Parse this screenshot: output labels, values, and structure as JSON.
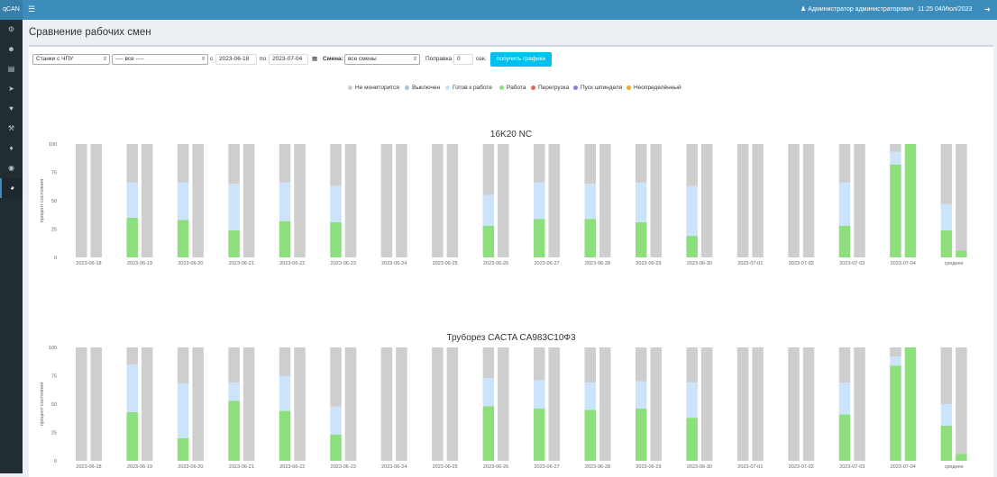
{
  "app": {
    "logo": "qCAN"
  },
  "header": {
    "user": "Администратор администраторович",
    "clock": "11:25 04/Июл/2023"
  },
  "sidebar": {
    "icons": [
      "gear-icon",
      "users-icon",
      "document-icon",
      "rocket-icon",
      "heart-icon",
      "wrench-icon",
      "bell-icon",
      "eye-icon",
      "chart-icon"
    ],
    "active_index": 8
  },
  "page": {
    "title": "Сравнение рабочих смен"
  },
  "filters": {
    "machine_group": "Станки с ЧПУ",
    "machine": "---- все ----",
    "from_label": "с",
    "date_from": "2023-06-18",
    "to_label": "по",
    "date_to": "2023-07-04",
    "shift_label": "Смена:",
    "shift": "все смены",
    "correction_label": "Поправка",
    "correction": "0",
    "unit": "сек.",
    "submit": "получить графики"
  },
  "legend": [
    {
      "label": "Не мониторится",
      "color": "#cccccc"
    },
    {
      "label": "Выключен",
      "color": "#9fc3e3"
    },
    {
      "label": "Готов к работе",
      "color": "#c9e2fb"
    },
    {
      "label": "Работа",
      "color": "#8ddf7e"
    },
    {
      "label": "Перегрузка",
      "color": "#e86464"
    },
    {
      "label": "Пуск шпинделя",
      "color": "#8a83d6"
    },
    {
      "label": "Неопределённый",
      "color": "#f0a828"
    }
  ],
  "colors": {
    "work": "#8ddf7e",
    "ready": "#cce4fb",
    "not_monitored": "#cecece"
  },
  "chart_data": [
    {
      "type": "bar",
      "title": "16K20 NC",
      "ylabel": "процент состояния",
      "ylim": [
        0,
        100
      ],
      "yticks": [
        0,
        25,
        50,
        75,
        100
      ],
      "categories": [
        "2023-06-18",
        "2023-06-19",
        "2023-06-20",
        "2023-06-21",
        "2023-06-22",
        "2023-06-23",
        "2023-06-24",
        "2023-06-25",
        "2023-06-26",
        "2023-06-27",
        "2023-06-28",
        "2023-06-29",
        "2023-06-30",
        "2023-07-01",
        "2023-07-02",
        "2023-07-03",
        "2023-07-04",
        "среднее"
      ],
      "bars": [
        [
          {
            "work": 0,
            "ready": 0
          },
          {
            "work": 0,
            "ready": 0
          }
        ],
        [
          {
            "work": 35,
            "ready": 31
          },
          {
            "work": 0,
            "ready": 0
          }
        ],
        [
          {
            "work": 33,
            "ready": 33
          },
          {
            "work": 0,
            "ready": 0
          }
        ],
        [
          {
            "work": 24,
            "ready": 41
          },
          {
            "work": 0,
            "ready": 0
          }
        ],
        [
          {
            "work": 32,
            "ready": 34
          },
          {
            "work": 0,
            "ready": 0
          }
        ],
        [
          {
            "work": 31,
            "ready": 32
          },
          {
            "work": 0,
            "ready": 0
          }
        ],
        [
          {
            "work": 0,
            "ready": 0
          },
          {
            "work": 0,
            "ready": 0
          }
        ],
        [
          {
            "work": 0,
            "ready": 0
          },
          {
            "work": 0,
            "ready": 0
          }
        ],
        [
          {
            "work": 28,
            "ready": 27
          },
          {
            "work": 0,
            "ready": 0
          }
        ],
        [
          {
            "work": 34,
            "ready": 32
          },
          {
            "work": 0,
            "ready": 0
          }
        ],
        [
          {
            "work": 34,
            "ready": 31
          },
          {
            "work": 0,
            "ready": 0
          }
        ],
        [
          {
            "work": 31,
            "ready": 35
          },
          {
            "work": 0,
            "ready": 0
          }
        ],
        [
          {
            "work": 19,
            "ready": 44
          },
          {
            "work": 0,
            "ready": 0
          }
        ],
        [
          {
            "work": 0,
            "ready": 0
          },
          {
            "work": 0,
            "ready": 0
          }
        ],
        [
          {
            "work": 0,
            "ready": 0
          },
          {
            "work": 0,
            "ready": 0
          }
        ],
        [
          {
            "work": 28,
            "ready": 38
          },
          {
            "work": 0,
            "ready": 0
          }
        ],
        [
          {
            "work": 82,
            "ready": 11
          },
          {
            "work": 100,
            "ready": 0
          }
        ],
        [
          {
            "work": 24,
            "ready": 23
          },
          {
            "work": 6,
            "ready": 0
          }
        ]
      ]
    },
    {
      "type": "bar",
      "title": "Труборез CACTA CA983C10Ф3",
      "ylabel": "процент состояния",
      "ylim": [
        0,
        100
      ],
      "yticks": [
        0,
        25,
        50,
        75,
        100
      ],
      "categories": [
        "2023-06-18",
        "2023-06-19",
        "2023-06-20",
        "2023-06-21",
        "2023-06-22",
        "2023-06-23",
        "2023-06-24",
        "2023-06-25",
        "2023-06-26",
        "2023-06-27",
        "2023-06-28",
        "2023-06-29",
        "2023-06-30",
        "2023-07-01",
        "2023-07-02",
        "2023-07-03",
        "2023-07-04",
        "среднее"
      ],
      "bars": [
        [
          {
            "work": 0,
            "ready": 0
          },
          {
            "work": 0,
            "ready": 0
          }
        ],
        [
          {
            "work": 43,
            "ready": 42
          },
          {
            "work": 0,
            "ready": 0
          }
        ],
        [
          {
            "work": 20,
            "ready": 48
          },
          {
            "work": 0,
            "ready": 0
          }
        ],
        [
          {
            "work": 53,
            "ready": 16
          },
          {
            "work": 0,
            "ready": 0
          }
        ],
        [
          {
            "work": 44,
            "ready": 31
          },
          {
            "work": 0,
            "ready": 0
          }
        ],
        [
          {
            "work": 23,
            "ready": 25
          },
          {
            "work": 0,
            "ready": 0
          }
        ],
        [
          {
            "work": 0,
            "ready": 0
          },
          {
            "work": 0,
            "ready": 0
          }
        ],
        [
          {
            "work": 0,
            "ready": 0
          },
          {
            "work": 0,
            "ready": 0
          }
        ],
        [
          {
            "work": 48,
            "ready": 25
          },
          {
            "work": 0,
            "ready": 0
          }
        ],
        [
          {
            "work": 46,
            "ready": 25
          },
          {
            "work": 0,
            "ready": 0
          }
        ],
        [
          {
            "work": 45,
            "ready": 24
          },
          {
            "work": 0,
            "ready": 0
          }
        ],
        [
          {
            "work": 46,
            "ready": 24
          },
          {
            "work": 0,
            "ready": 0
          }
        ],
        [
          {
            "work": 38,
            "ready": 31
          },
          {
            "work": 0,
            "ready": 0
          }
        ],
        [
          {
            "work": 0,
            "ready": 0
          },
          {
            "work": 0,
            "ready": 0
          }
        ],
        [
          {
            "work": 0,
            "ready": 0
          },
          {
            "work": 0,
            "ready": 0
          }
        ],
        [
          {
            "work": 41,
            "ready": 28
          },
          {
            "work": 0,
            "ready": 0
          }
        ],
        [
          {
            "work": 84,
            "ready": 8
          },
          {
            "work": 100,
            "ready": 0
          }
        ],
        [
          {
            "work": 31,
            "ready": 19
          },
          {
            "work": 6,
            "ready": 0
          }
        ]
      ]
    }
  ]
}
